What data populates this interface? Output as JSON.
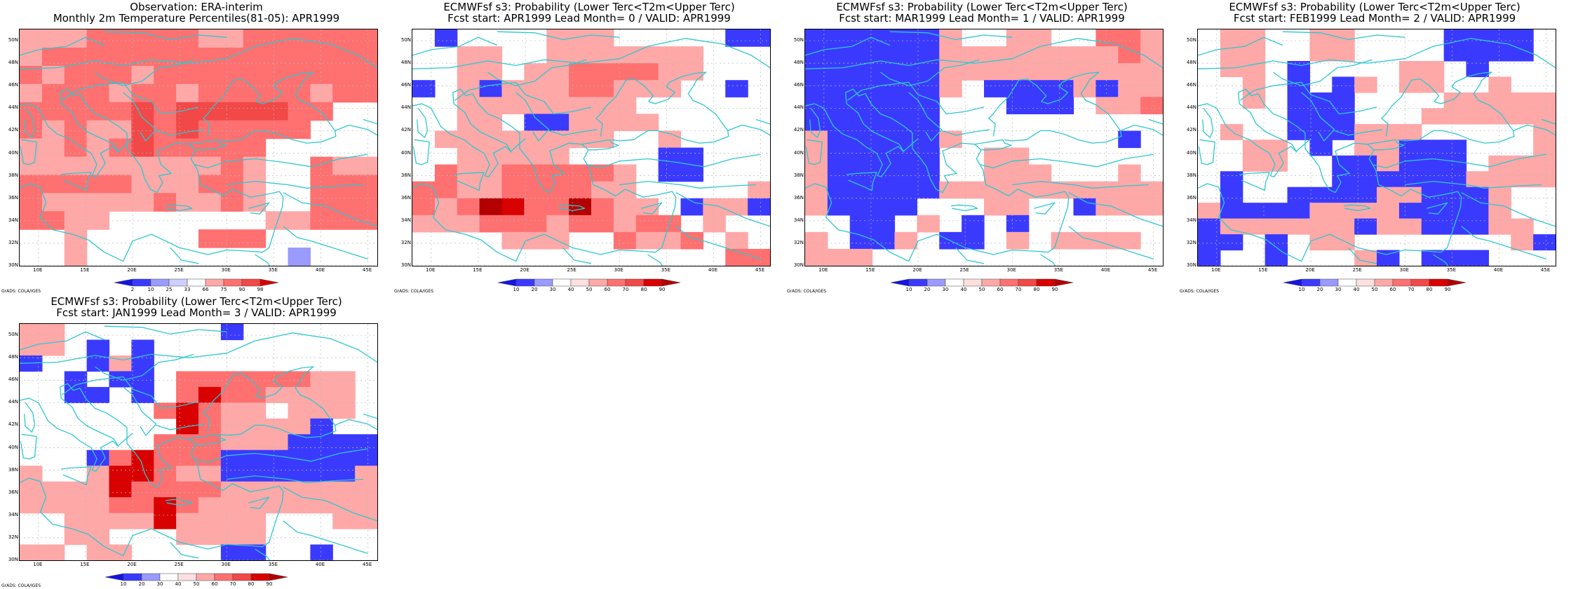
{
  "map_extent": {
    "lon": [
      8,
      46
    ],
    "lat": [
      30,
      51
    ]
  },
  "colors": {
    "blue_dark": "#1414e8",
    "blue_med": "#3a3aff",
    "blue_light": "#9a9aff",
    "white": "#ffffff",
    "red_light": "#ffa8a8",
    "red_med": "#ff7070",
    "red_strong": "#f24848",
    "red_dark": "#d80000",
    "red_darkest": "#b40000",
    "coast": "#2cc8d0",
    "grid": "#b8b8b8"
  },
  "yticks": [
    "50N",
    "48N",
    "46N",
    "44N",
    "42N",
    "40N",
    "38N",
    "36N",
    "34N",
    "32N",
    "30N"
  ],
  "xticks": [
    "10E",
    "15E",
    "20E",
    "25E",
    "30E",
    "35E",
    "40E",
    "45E"
  ],
  "credit": "GrADS: COLA/IGES",
  "panels": [
    {
      "title1": "Observation: ERA-interim",
      "title2": "Monthly 2m Temperature Percentiles(81-05): APR1999",
      "legend_labels": [
        "2",
        "10",
        "25",
        "33",
        "66",
        "75",
        "90",
        "98"
      ],
      "legend_colors": [
        "blue_dark",
        "blue_med",
        "blue_light",
        "#cfcfff",
        "white",
        "red_light",
        "red_med",
        "red_strong",
        "red_dark"
      ],
      "grid": [
        "rrrRRRRRrrRRRRRR",
        "rRRRRRRRRRRRRRRR",
        "RrRRRrRRRRRRRRRR",
        "rRRRrRRrRRRRRrRR",
        "RRRRRSRSSSSSRR..",
        "RrRrrSRSRRRRR...",
        "rrRrRSRRRRR.....",
        "rrrrrrrrrRr..Rrr",
        "RRRRRrrrRRr..RRR",
        "RrrrrrRrrRr..RRR",
        "RRrr.......rrRRR",
        "..r.....RRR.....",
        "..r.........L..."
      ]
    },
    {
      "title1": "ECMWFsf s3: Probability (Lower Terc<T2m<Upper Terc)",
      "title2": "Fcst start: APR1999   Lead Month= 0 / VALID: APR1999",
      "legend_labels": [
        "10",
        "20",
        "30",
        "40",
        "50",
        "60",
        "70",
        "80",
        "90"
      ],
      "legend_colors": [
        "blue_dark",
        "blue_med",
        "blue_light",
        "white",
        "#ffe0e0",
        "red_light",
        "red_med",
        "red_strong",
        "red_dark",
        "red_darkest"
      ],
      "grid": [
        ".B....rrr.....BB",
        "..rr..rrrrrrr...",
        "..rr.rrRRRRrr...",
        "B.rBrrrRRrrr..B.",
        "..rrrrrrrr......",
        "..rr.BBrrrr.....",
        ".rrrrrrrr..r....",
        "..rrrrr....BB...",
        ".RrrRRRRRr.BB...",
        "RRrrRRRRrr.....r",
        "RrRXDRRXRrr.BrrB",
        "rrrRRRrRRrRR.r..",
        "....rrr..RrrR.r.",
        "..............RR"
      ]
    },
    {
      "title1": "ECMWFsf s3: Probability (Lower Terc<T2m<Upper Terc)",
      "title2": "Fcst start: MAR1999   Lead Month= 1 / VALID: APR1999",
      "legend_labels": [
        "10",
        "20",
        "30",
        "40",
        "50",
        "60",
        "70",
        "80",
        "90"
      ],
      "legend_colors": [
        "blue_dark",
        "blue_med",
        "blue_light",
        "white",
        "#ffe0e0",
        "red_light",
        "red_med",
        "red_strong",
        "red_dark",
        "red_darkest"
      ],
      "grid": [
        "BBBBBBr..rr..RRr",
        "BBBBBBrrrrrrrrRr",
        "BBBBBBrrrrrrrrrr",
        "BBBBBBr.BBBBrBrr",
        "BBBBBB...BBB.rrR",
        "BBBBBB..........",
        "rBBBBBr.......B.",
        "rBBBBB..rr......",
        "rBBBBB..rrr...r.",
        "rBBBBBrrrrrrrrrr",
        "rBBBB...rr..Brrr",
        "..BB.r.B.B......",
        "r.BBr.BB.r.rrrr.",
        "rrr.............."
      ]
    },
    {
      "title1": "ECMWFsf s3: Probability (Lower Terc<T2m<Upper Terc)",
      "title2": "Fcst start: FEB1999   Lead Month= 2 / VALID: APR1999",
      "legend_labels": [
        "10",
        "20",
        "30",
        "40",
        "50",
        "60",
        "70",
        "80",
        "90"
      ],
      "legend_colors": [
        "blue_dark",
        "blue_med",
        "blue_light",
        "white",
        "#ffe0e0",
        "red_light",
        "red_med",
        "red_strong",
        "red_dark",
        "red_darkest"
      ],
      "grid": [
        ".rr..rr....BBBB.",
        ".rr..rr....BBBB.",
        ".rr.B....rr.B...",
        "..r.B.Br.rr..r..",
        "..r.BBB....rrrrr",
        "....BBB...rrrrrr",
        ".r..BBBrrr.....r",
        "..rr.B.rrBBB...r",
        "..rr..BBrBBB.rrr",
        ".B....BBBBBBrrrr",
        ".B..BBBBrrBBBr..",
        "rBBBBrrrrBBBBr..",
        "BrrrrrrBrrBBBrr.",
        "BB.B.rr.......rB",
        "B..B...rB.BBB..."
      ]
    },
    {
      "title1": "ECMWFsf s3: Probability (Lower Terc<T2m<Upper Terc)",
      "title2": "Fcst start: JAN1999   Lead Month= 3 / VALID: APR1999",
      "legend_labels": [
        "10",
        "20",
        "30",
        "40",
        "50",
        "60",
        "70",
        "80",
        "90"
      ],
      "legend_colors": [
        "blue_dark",
        "blue_med",
        "blue_light",
        "white",
        "#ffe0e0",
        "red_light",
        "red_med",
        "red_strong",
        "red_dark",
        "red_darkest"
      ],
      "grid": [
        "rr.......B......",
        "rr.B.B..........",
        "B..BrB..........",
        "..B.BB.RRRRRRrr.",
        "..BB.B.RDRRrrrr.",
        "......RDRrr.rrr.",
        ".......DRrrrrB..",
        "......RRRrrrBBBB",
        "...BRDRRRBBBBBBB",
        "r..rDDRrrBBBBBBr",
        "rrrrDRRRRrrrrrrr",
        "rrrrRRDRrrrrrrrr",
        "..rrrrDrrrr...rr",
        "..rr...rrrr.....",
        "rr.rr....BB..B.."
      ]
    }
  ]
}
